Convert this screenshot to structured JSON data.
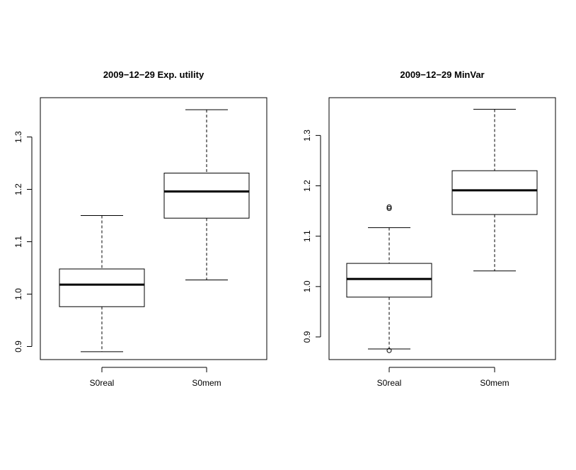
{
  "chart_data": [
    {
      "type": "boxplot",
      "title": "2009−12−29 Exp. utility",
      "xlabel": "",
      "ylabel": "",
      "ylim": [
        0.875,
        1.375
      ],
      "yticks": [
        0.9,
        1.0,
        1.1,
        1.2,
        1.3
      ],
      "ytick_labels": [
        "0.9",
        "1.0",
        "1.1",
        "1.2",
        "1.3"
      ],
      "categories": [
        "S0real",
        "S0mem"
      ],
      "boxes": [
        {
          "category": "S0real",
          "whisker_low": 0.89,
          "q1": 0.976,
          "median": 1.018,
          "q3": 1.048,
          "whisker_high": 1.15,
          "outliers": []
        },
        {
          "category": "S0mem",
          "whisker_low": 1.027,
          "q1": 1.145,
          "median": 1.196,
          "q3": 1.231,
          "whisker_high": 1.352,
          "outliers": []
        }
      ],
      "grid": false
    },
    {
      "type": "boxplot",
      "title": "2009−12−29 MinVar",
      "xlabel": "",
      "ylabel": "",
      "ylim": [
        0.855,
        1.375
      ],
      "yticks": [
        0.9,
        1.0,
        1.1,
        1.2,
        1.3
      ],
      "ytick_labels": [
        "0.9",
        "1.0",
        "1.1",
        "1.2",
        "1.3"
      ],
      "categories": [
        "S0real",
        "S0mem"
      ],
      "boxes": [
        {
          "category": "S0real",
          "whisker_low": 0.876,
          "q1": 0.979,
          "median": 1.015,
          "q3": 1.046,
          "whisker_high": 1.117,
          "outliers": [
            0.873,
            1.155,
            1.158
          ]
        },
        {
          "category": "S0mem",
          "whisker_low": 1.031,
          "q1": 1.143,
          "median": 1.191,
          "q3": 1.23,
          "whisker_high": 1.352,
          "outliers": []
        }
      ],
      "grid": false
    }
  ]
}
